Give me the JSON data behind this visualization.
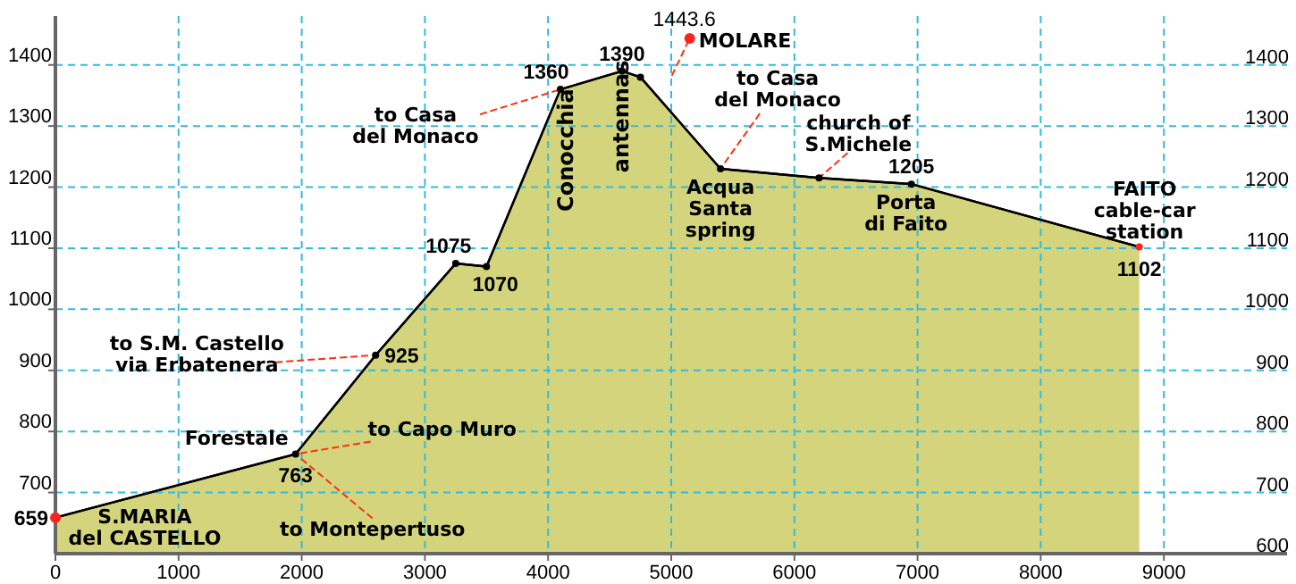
{
  "chart_data": {
    "type": "area",
    "x": [
      0,
      1950,
      2600,
      3250,
      3500,
      4100,
      4600,
      4750,
      5400,
      6200,
      6950,
      8800
    ],
    "series": [
      {
        "color": "#d3d47b",
        "values": [
          659,
          763,
          925,
          1075,
          1070,
          1360,
          1390,
          1380,
          1230,
          1215,
          1205,
          1102
        ],
        "value_labels": [
          "659",
          "763",
          "925",
          "1075",
          "1070",
          "1360",
          "1390",
          null,
          null,
          null,
          "1205",
          "1102"
        ],
        "colors": [
          "#ff2020",
          "#000000",
          "#000000",
          "#000000",
          "#000000",
          "#000000",
          "#000000",
          "#000000",
          "#000000",
          "#000000",
          "#000000",
          "#ff2020"
        ]
      },
      {
        "type": "scatter",
        "color": "#ff2020",
        "x": [
          5150
        ],
        "values": [
          1443.6
        ],
        "value_labels": [
          "1443.6"
        ]
      }
    ],
    "xlim": [
      0,
      10000
    ],
    "xticks": [
      0,
      1000,
      2000,
      3000,
      4000,
      5000,
      6000,
      7000,
      8000,
      9000
    ],
    "ylim": [
      600,
      1480
    ],
    "yticks": [
      700,
      800,
      900,
      1000,
      1100,
      1200,
      1300,
      1400
    ],
    "y2lim": [
      600,
      1480
    ],
    "y2ticks": [
      600,
      700,
      800,
      900,
      1000,
      1100,
      1200,
      1300,
      1400
    ],
    "grid": true,
    "marker": "circle",
    "annotations": [
      {
        "text": "S.MARIA\ndel CASTELLO",
        "x": 0,
        "y": 659
      },
      {
        "text": "Forestale",
        "x": 1950,
        "y": 763
      },
      {
        "text": "to Capo Muro",
        "x": 1950,
        "y": 763
      },
      {
        "text": "to Montepertuso",
        "x": 1950,
        "y": 763
      },
      {
        "text": "to S.M. Castello\nvia Erbatenera",
        "x": 2600,
        "y": 925
      },
      {
        "text": "to Casa\ndel Monaco",
        "x": 4100,
        "y": 1360
      },
      {
        "text": "Conocchia",
        "x": 4100,
        "y": 1360
      },
      {
        "text": "antennas",
        "x": 4750,
        "y": 1380
      },
      {
        "text": "MOLARE",
        "x": 5150,
        "y": 1443.6
      },
      {
        "text": "to Casa\ndel Monaco",
        "x": 5400,
        "y": 1230
      },
      {
        "text": "Acqua\nSanta\nspring",
        "x": 5400,
        "y": 1230
      },
      {
        "text": "church of\nS.Michele",
        "x": 6200,
        "y": 1215
      },
      {
        "text": "Porta\ndi Faito",
        "x": 6950,
        "y": 1205
      },
      {
        "text": "FAITO\ncable-car\nstation",
        "x": 8800,
        "y": 1102
      }
    ]
  }
}
